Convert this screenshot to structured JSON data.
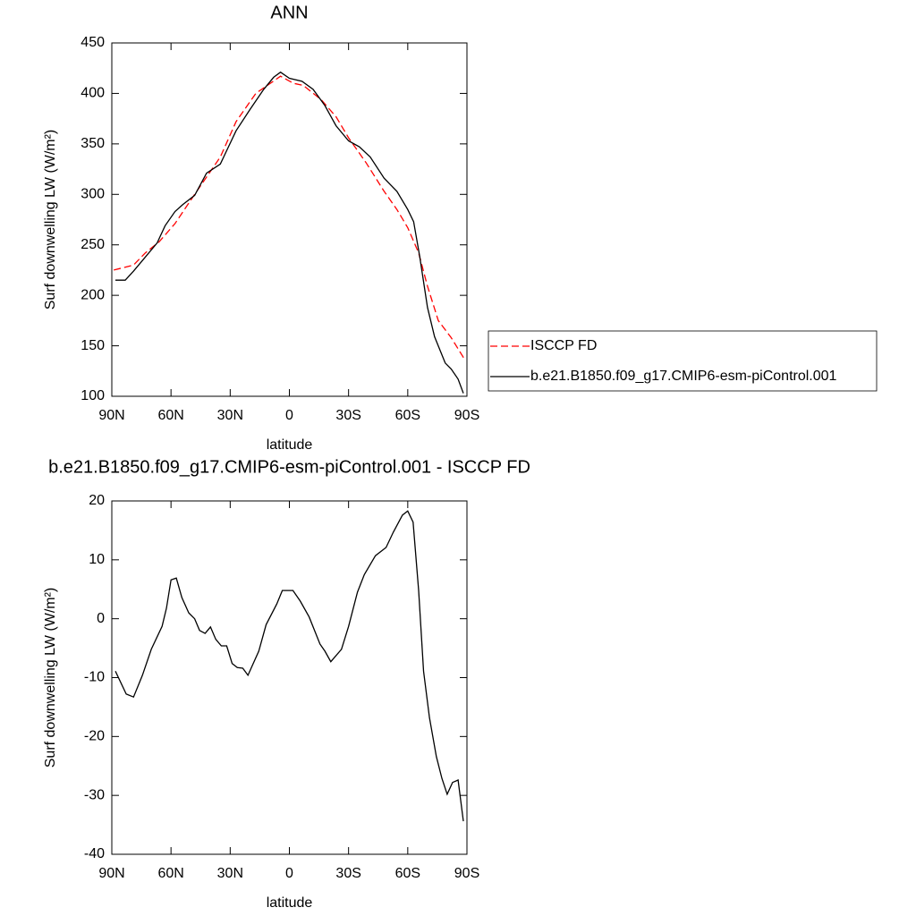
{
  "chart_data": [
    {
      "type": "line",
      "title": "ANN",
      "x_label": "latitude",
      "y_label": "Surf downwelling LW (W/m²)",
      "xlim": [
        90,
        -90
      ],
      "xticks": [
        {
          "value": 90,
          "label": "90N"
        },
        {
          "value": 60,
          "label": "60N"
        },
        {
          "value": 30,
          "label": "30N"
        },
        0,
        {
          "value": -30,
          "label": "30S"
        },
        {
          "value": -60,
          "label": "60S"
        },
        {
          "value": -90,
          "label": "90S"
        }
      ],
      "ylim": [
        100,
        450
      ],
      "yticks": [
        100,
        150,
        200,
        250,
        300,
        350,
        400,
        450
      ],
      "legend": "right",
      "series": [
        {
          "name": "ISCCP FD",
          "color": "#ff0000",
          "line_style": "dashed",
          "x": [
            89,
            79,
            73,
            66,
            58,
            48,
            35,
            27,
            17,
            4.5,
            -2,
            -7,
            -16,
            -23.6,
            -30,
            -39,
            -48,
            -54.5,
            -60,
            -65.5,
            -70,
            -75.5,
            -82,
            -89
          ],
          "values": [
            225,
            230,
            242,
            253,
            271,
            300,
            337,
            372,
            400,
            417,
            410,
            408,
            394,
            377,
            356,
            331,
            303,
            285,
            267,
            242,
            209,
            175,
            158,
            136
          ]
        },
        {
          "name": "b.e21.B1850.f09_g17.CMIP6-esm-piControl.001",
          "color": "#000000",
          "line_style": "solid",
          "x": [
            88.2,
            83.2,
            79,
            73,
            67,
            63,
            58,
            54,
            48,
            42,
            35,
            27,
            20,
            13,
            8,
            4.5,
            0,
            -6.4,
            -12,
            -18,
            -23.6,
            -30,
            -35.5,
            -41,
            -48,
            -54.5,
            -60,
            -63,
            -66,
            -70,
            -73.6,
            -79,
            -82,
            -85.5,
            -88.2
          ],
          "values": [
            215,
            215,
            224,
            238,
            252,
            269,
            283,
            290,
            299,
            321,
            330,
            363,
            384,
            404,
            416,
            421,
            415,
            412,
            404,
            388,
            368,
            353,
            347,
            337,
            316,
            303,
            285,
            273,
            239,
            188,
            159,
            133,
            127,
            117,
            103
          ]
        }
      ]
    },
    {
      "type": "line",
      "title": "b.e21.B1850.f09_g17.CMIP6-esm-piControl.001 - ISCCP FD",
      "x_label": "latitude",
      "y_label": "Surf downwelling LW (W/m²)",
      "xlim": [
        90,
        -90
      ],
      "xticks": [
        {
          "value": 90,
          "label": "90N"
        },
        {
          "value": 60,
          "label": "60N"
        },
        {
          "value": 30,
          "label": "30N"
        },
        0,
        {
          "value": -30,
          "label": "30S"
        },
        {
          "value": -60,
          "label": "60S"
        },
        {
          "value": -90,
          "label": "90S"
        }
      ],
      "ylim": [
        -40,
        20
      ],
      "yticks": [
        -40,
        -30,
        -20,
        -10,
        0,
        10,
        20
      ],
      "series": [
        {
          "color": "#000000",
          "line_style": "solid",
          "x": [
            88.2,
            82.7,
            79,
            74.5,
            70,
            64.5,
            62.3,
            60,
            57.3,
            54.5,
            51,
            48,
            45.5,
            42.7,
            40,
            37.3,
            34.5,
            31.8,
            29,
            26.4,
            23.6,
            21,
            15.5,
            11.8,
            6.4,
            3.6,
            -1.8,
            -5.5,
            -10,
            -15.5,
            -18,
            -21,
            -26.4,
            -30,
            -34.5,
            -38,
            -43.6,
            -49,
            -52.7,
            -57.3,
            -60,
            -62.7,
            -65.5,
            -68,
            -71,
            -74.5,
            -77.3,
            -80,
            -82.7,
            -85.5,
            -88.2
          ],
          "values": [
            -8.9,
            -12.8,
            -13.3,
            -9.6,
            -5.2,
            -1.3,
            1.8,
            6.6,
            6.9,
            3.6,
            1,
            0,
            -2,
            -2.5,
            -1.4,
            -3.5,
            -4.6,
            -4.6,
            -7.6,
            -8.3,
            -8.4,
            -9.6,
            -5.5,
            -1,
            2.5,
            4.8,
            4.8,
            3,
            0.3,
            -4.3,
            -5.5,
            -7.3,
            -5.2,
            -1.3,
            4.5,
            7.5,
            10.7,
            12.1,
            14.7,
            17.6,
            18.3,
            16.4,
            4.8,
            -8.9,
            -16.8,
            -23.4,
            -27.1,
            -29.8,
            -27.8,
            -27.4,
            -34.4
          ]
        }
      ]
    }
  ]
}
